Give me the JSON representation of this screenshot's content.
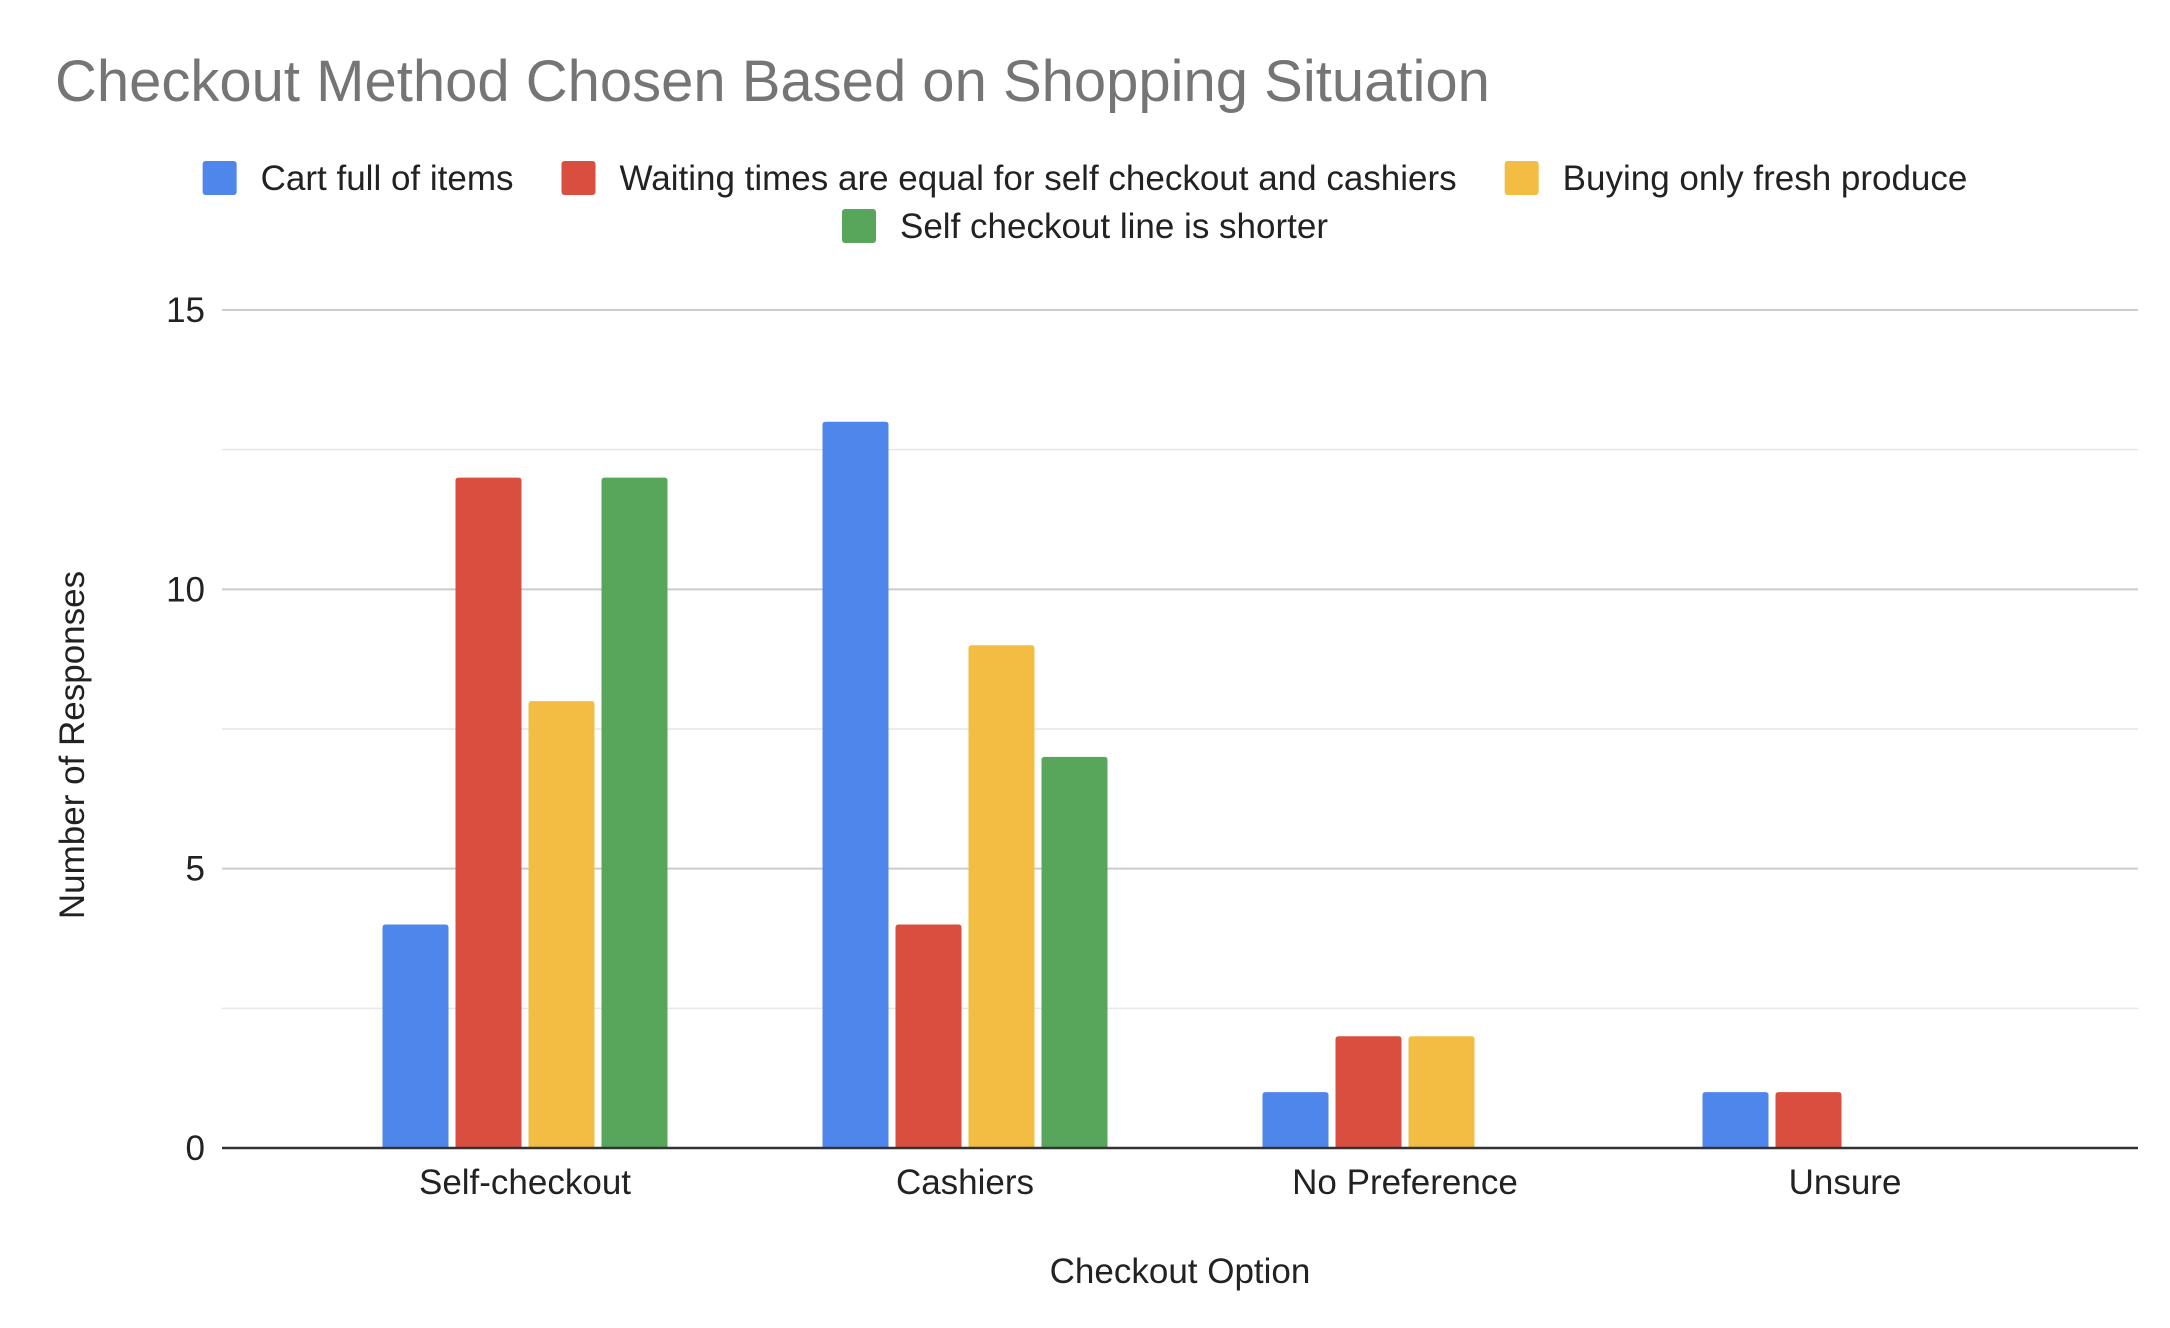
{
  "chart_data": {
    "type": "bar",
    "title": "Checkout Method Chosen Based on Shopping Situation",
    "xlabel": "Checkout Option",
    "ylabel": "Number of Responses",
    "categories": [
      "Self-checkout",
      "Cashiers",
      "No Preference",
      "Unsure"
    ],
    "series": [
      {
        "name": "Cart full of items",
        "color": "#4F86EC",
        "values": [
          4,
          13,
          1,
          1
        ]
      },
      {
        "name": "Waiting times are equal for self checkout and cashiers",
        "color": "#DA4E3F",
        "values": [
          12,
          4,
          2,
          1
        ]
      },
      {
        "name": "Buying only fresh produce",
        "color": "#F2BD42",
        "values": [
          8,
          9,
          2,
          0
        ]
      },
      {
        "name": "Self checkout line is shorter",
        "color": "#58A65C",
        "values": [
          12,
          7,
          0,
          0
        ]
      }
    ],
    "ylim": [
      0,
      15
    ],
    "yticks": [
      0,
      5,
      10,
      15
    ],
    "grid": true,
    "minor_gridlines": true,
    "legend_position": "top"
  }
}
